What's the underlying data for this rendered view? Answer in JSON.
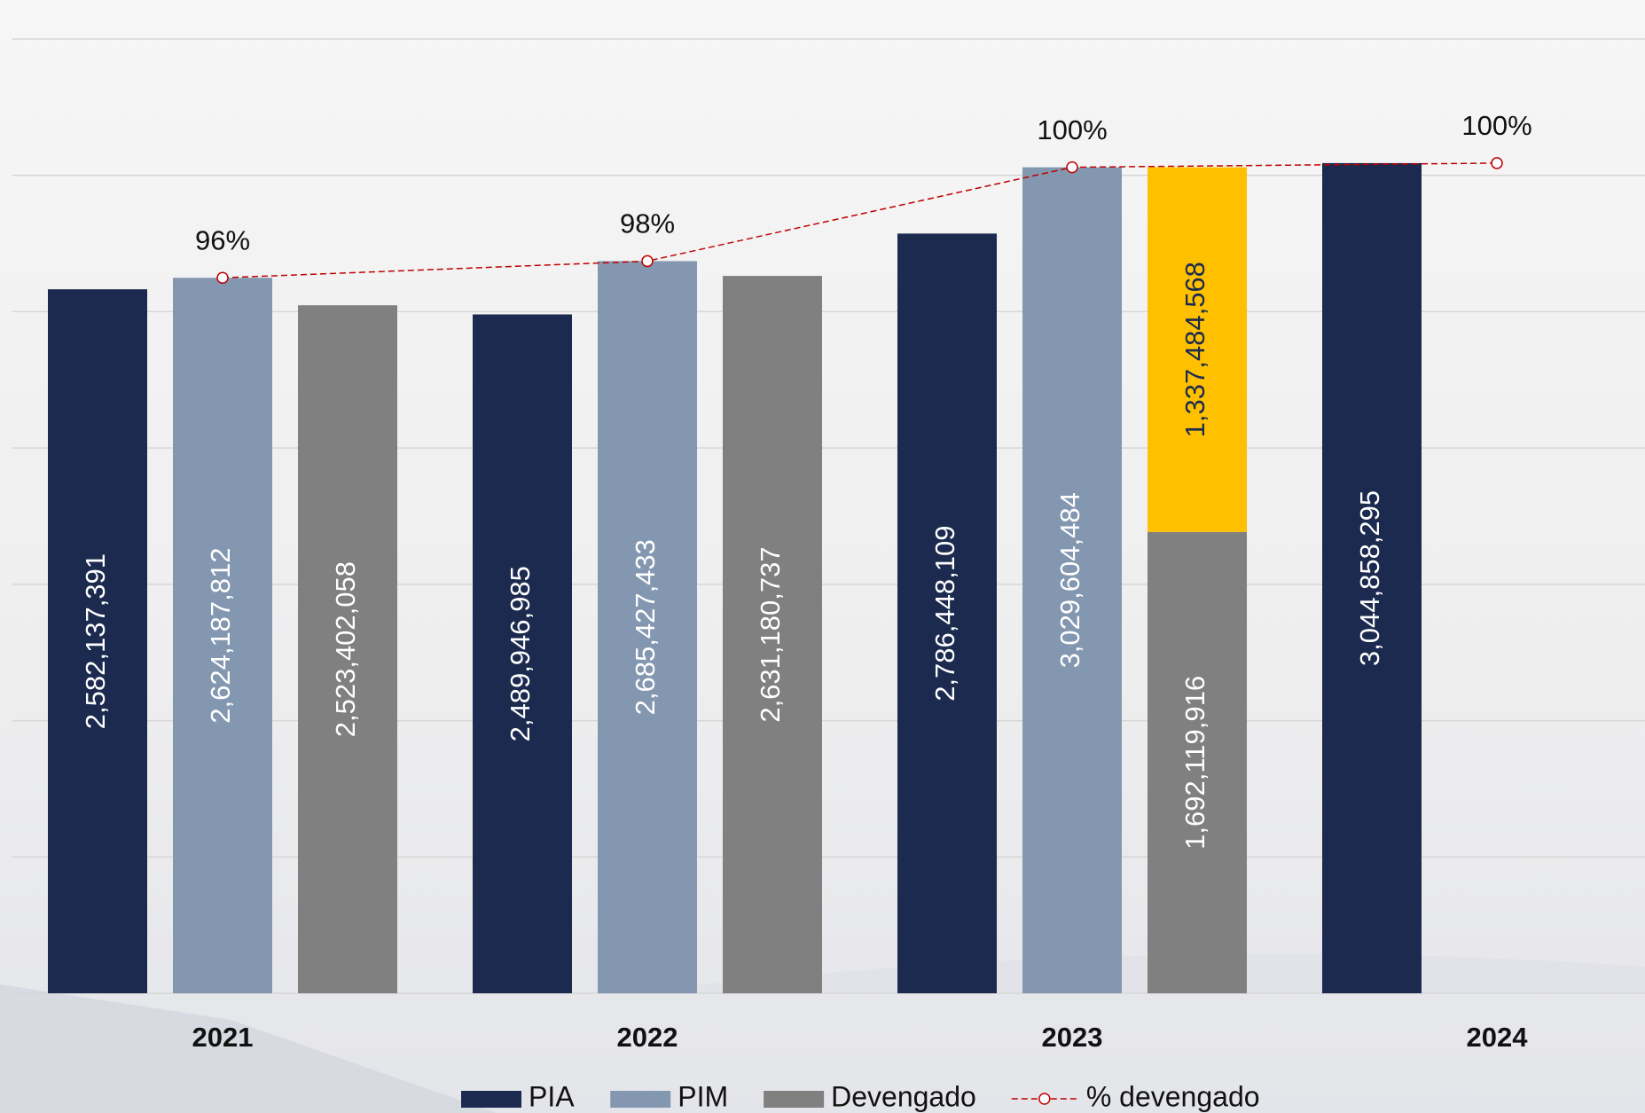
{
  "chart_data": {
    "type": "bar",
    "categories": [
      "2021",
      "2022",
      "2023",
      "2024"
    ],
    "series": [
      {
        "name": "PIA",
        "color": "#1b2a4e",
        "values": [
          2582137391,
          2489946985,
          2786448109,
          3044858295
        ]
      },
      {
        "name": "PIM",
        "color": "#8497b0",
        "values": [
          2624187812,
          2685427433,
          3029604484,
          null
        ]
      },
      {
        "name": "Devengado",
        "color": "#808080",
        "values": [
          2523402058,
          2631180737,
          1692119916,
          null
        ]
      },
      {
        "color": "#ffc000",
        "stack": "Devengado",
        "values": [
          null,
          null,
          1337484568,
          null
        ]
      },
      {
        "name": "% devengado",
        "type": "line",
        "color": "#c00000",
        "values": [
          96,
          98,
          100,
          100
        ],
        "value_labels": [
          "96%",
          "98%",
          "100%",
          "100%"
        ]
      }
    ],
    "ylim": [
      0,
      3500000000
    ],
    "yticks": [
      0,
      500000000,
      1000000000,
      1500000000,
      2000000000,
      2500000000,
      3000000000,
      3500000000
    ],
    "grid": true
  }
}
